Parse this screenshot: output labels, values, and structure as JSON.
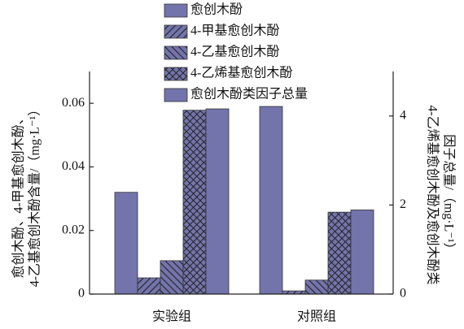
{
  "chart_data": {
    "type": "bar",
    "categories": [
      "实验组",
      "对照组"
    ],
    "ylabel": [
      "愈创木酚、4-甲基愈创木酚、",
      "4-乙基愈创木酚含量/（mg·L⁻¹）"
    ],
    "y2label": [
      "4-乙烯基愈创木酚及愈创木酚类",
      "因子总量/（mg·L⁻¹）"
    ],
    "series": [
      {
        "name": "愈创木酚",
        "color": "#7474ac",
        "hatch": null,
        "values": [
          0.032,
          0.059
        ]
      },
      {
        "name": "4-甲基愈创木酚",
        "color": "#7474ac",
        "hatch": "/",
        "values": [
          0.0051,
          0.001
        ]
      },
      {
        "name": "4-乙基愈创木酚",
        "color": "#7474ac",
        "hatch": "\\",
        "values": [
          0.0105,
          0.0044
        ]
      },
      {
        "name": "4-乙烯基愈创木酚",
        "color": "#7474ac",
        "hatch": "x",
        "axis": "y2",
        "values": [
          4.13,
          1.84
        ]
      },
      {
        "name": "愈创木酚类因子总量",
        "color": "#7474ac",
        "hatch": null,
        "axis": "y2",
        "values": [
          4.16,
          1.89
        ]
      }
    ],
    "ylim": [
      0,
      0.07
    ],
    "yticks": [
      0,
      0.02,
      0.04,
      0.06
    ],
    "y2lim": [
      0,
      5
    ],
    "y2ticks": [
      0,
      2,
      4
    ]
  }
}
